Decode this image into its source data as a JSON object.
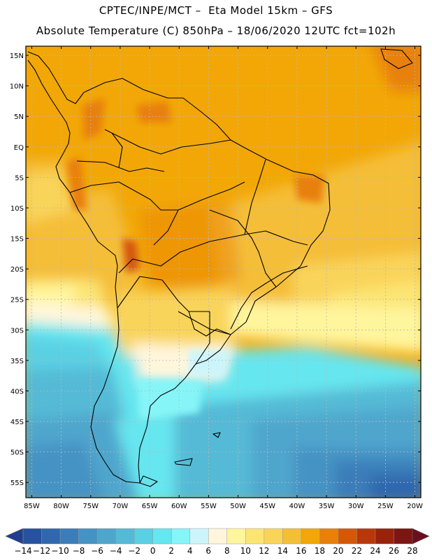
{
  "header": {
    "line1": "CPTEC/INPE/MCT –  Eta Model 15km – GFS",
    "line2": "Absolute Temperature (C) 850hPa – 18/06/2020 12UTC fct=102h"
  },
  "map": {
    "lat_labels": [
      "15N",
      "10N",
      "5N",
      "EQ",
      "5S",
      "10S",
      "15S",
      "20S",
      "25S",
      "30S",
      "35S",
      "40S",
      "45S",
      "50S",
      "55S"
    ],
    "lon_labels": [
      "85W",
      "80W",
      "75W",
      "70W",
      "65W",
      "60W",
      "55W",
      "50W",
      "45W",
      "40W",
      "35W",
      "30W",
      "25W",
      "20W"
    ],
    "bounds": {
      "west": -86,
      "east": -19,
      "north": 16.5,
      "south": -57.5
    }
  },
  "colorbar": {
    "labels": [
      "-14",
      "-12",
      "-10",
      "-8",
      "-6",
      "-4",
      "-2",
      "0",
      "2",
      "4",
      "6",
      "8",
      "10",
      "12",
      "14",
      "16",
      "18",
      "20",
      "22",
      "24",
      "26",
      "28"
    ],
    "colors": [
      "#1f3e8e",
      "#26529f",
      "#2f68ae",
      "#3a7db9",
      "#4593c4",
      "#4fa6cd",
      "#54bad6",
      "#5ad0e3",
      "#66e6ef",
      "#86f5f8",
      "#ccf5fb",
      "#fff6dc",
      "#fff59c",
      "#fce573",
      "#f9d45a",
      "#f5be37",
      "#f2a707",
      "#e8800a",
      "#d55809",
      "#b8380a",
      "#98230b",
      "#7c1613",
      "#6b0f1e"
    ]
  }
}
